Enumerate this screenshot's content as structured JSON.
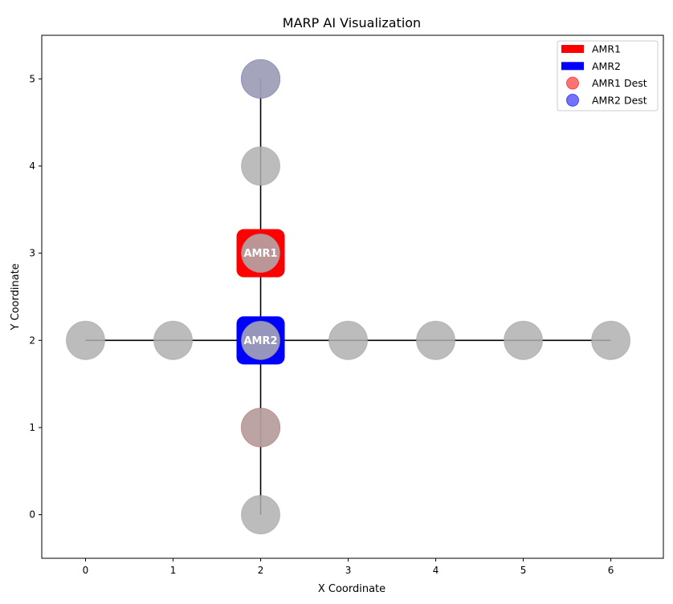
{
  "chart_data": {
    "type": "scatter",
    "title": "MARP AI Visualization",
    "xlabel": "X Coordinate",
    "ylabel": "Y Coordinate",
    "xlim": [
      -0.5,
      6.6
    ],
    "ylim": [
      -0.5,
      5.5
    ],
    "xticks": [
      "0",
      "1",
      "2",
      "3",
      "4",
      "5",
      "6"
    ],
    "yticks": [
      "0",
      "1",
      "2",
      "3",
      "4",
      "5"
    ],
    "edges": [
      {
        "from": [
          0,
          2
        ],
        "to": [
          6,
          2
        ]
      },
      {
        "from": [
          2,
          0
        ],
        "to": [
          2,
          5
        ]
      }
    ],
    "nodes": [
      {
        "x": 0,
        "y": 2
      },
      {
        "x": 1,
        "y": 2
      },
      {
        "x": 2,
        "y": 2
      },
      {
        "x": 3,
        "y": 2
      },
      {
        "x": 4,
        "y": 2
      },
      {
        "x": 5,
        "y": 2
      },
      {
        "x": 6,
        "y": 2
      },
      {
        "x": 2,
        "y": 0
      },
      {
        "x": 2,
        "y": 1
      },
      {
        "x": 2,
        "y": 3
      },
      {
        "x": 2,
        "y": 4
      },
      {
        "x": 2,
        "y": 5
      }
    ],
    "agents": [
      {
        "name": "AMR1",
        "x": 2,
        "y": 3,
        "color": "#ff0000"
      },
      {
        "name": "AMR2",
        "x": 2,
        "y": 2,
        "color": "#0000ff"
      }
    ],
    "destinations": [
      {
        "name": "AMR1 Dest",
        "x": 2,
        "y": 1,
        "color": "#ff0000"
      },
      {
        "name": "AMR2 Dest",
        "x": 2,
        "y": 5,
        "color": "#0000ff"
      }
    ],
    "legend": {
      "position": "top-right",
      "entries": [
        {
          "label": "AMR1",
          "kind": "patch",
          "color": "#ff0000"
        },
        {
          "label": "AMR2",
          "kind": "patch",
          "color": "#0000ff"
        },
        {
          "label": "AMR1 Dest",
          "kind": "circle",
          "color": "#ff0000"
        },
        {
          "label": "AMR2 Dest",
          "kind": "circle",
          "color": "#0000ff"
        }
      ]
    },
    "colors": {
      "node": "#b0b0b0",
      "edge": "#000000"
    }
  }
}
